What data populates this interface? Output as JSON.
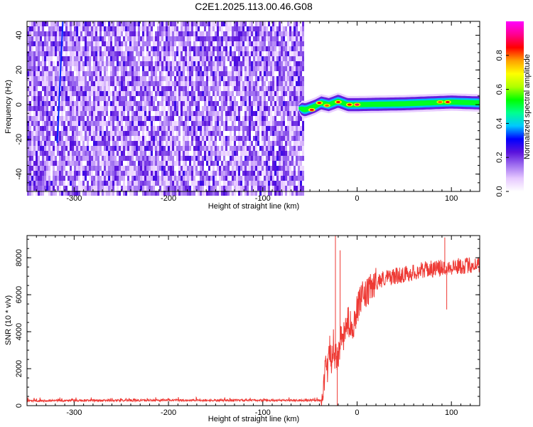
{
  "title": "C2E1.2025.113.00.46.G08",
  "colors": {
    "snr_line": "#ee3a35",
    "background": "#ffffff",
    "frame": "#000000"
  },
  "chart_data": [
    {
      "type": "heatmap",
      "xlabel": "Height of straight line (km)",
      "ylabel": "Frequency (Hz)",
      "xlim": [
        -350,
        130
      ],
      "ylim": [
        -50,
        48
      ],
      "x_ticks": [
        -300,
        -200,
        -100,
        0,
        100
      ],
      "x_tick_labels": [
        "-300",
        "-200",
        "-100",
        "0",
        "100"
      ],
      "y_ticks": [
        -40,
        -20,
        0,
        20,
        40
      ],
      "y_tick_labels": [
        "-40",
        "-20",
        "0",
        "20",
        "40"
      ],
      "noise_region": {
        "x_start": -350,
        "x_end": -58,
        "typical_amplitude": 0.15
      },
      "signal_track": {
        "x_start": -62,
        "x_end": 130,
        "center_frequency_hz": 0,
        "halfwidth_hz": 5,
        "centerline": [
          [
            -62,
            -2
          ],
          [
            -55,
            -3
          ],
          [
            -45,
            -1
          ],
          [
            -38,
            1
          ],
          [
            -30,
            0
          ],
          [
            -20,
            2
          ],
          [
            -10,
            0
          ],
          [
            0,
            0
          ],
          [
            50,
            0.5
          ],
          [
            100,
            1.5
          ],
          [
            130,
            1
          ]
        ],
        "peaks": [
          [
            -48,
            -3,
            0.85
          ],
          [
            -40,
            1,
            0.85
          ],
          [
            -32,
            -0.5,
            0.8
          ],
          [
            -20,
            1.5,
            0.85
          ],
          [
            -8,
            0,
            0.85
          ],
          [
            0,
            0,
            0.9
          ],
          [
            88,
            1.5,
            0.8
          ],
          [
            96,
            1.5,
            0.85
          ]
        ]
      },
      "streak": {
        "x_top": -312,
        "y_top": 48,
        "x_bottom": -318,
        "y_bottom": -22
      },
      "grid": false
    },
    {
      "type": "colorbar",
      "label": "Normalized spectral amplitude",
      "range": [
        0,
        1
      ],
      "ticks": [
        0.0,
        0.2,
        0.4,
        0.6,
        0.8
      ],
      "tick_labels": [
        "0.0",
        "0.2",
        "0.4",
        "0.6",
        "0.8"
      ],
      "colormap": [
        "#ffffff",
        "#e6c8ff",
        "#a070f0",
        "#5a12dc",
        "#0000ff",
        "#00c8ff",
        "#00ff90",
        "#00ff00",
        "#b0ff00",
        "#ffff00",
        "#ffa000",
        "#ff0000",
        "#ff0090",
        "#ff00ff"
      ]
    },
    {
      "type": "line",
      "xlabel": "Height of straight line (km)",
      "ylabel": "SNR (10 * v/v)",
      "xlim": [
        -350,
        130
      ],
      "ylim": [
        0,
        9200
      ],
      "x_ticks": [
        -300,
        -200,
        -100,
        0,
        100
      ],
      "x_tick_labels": [
        "-300",
        "-200",
        "-100",
        "0",
        "100"
      ],
      "y_ticks": [
        0,
        2000,
        4000,
        6000,
        8000
      ],
      "y_tick_labels": [
        "0",
        "2000",
        "4000",
        "6000",
        "8000"
      ],
      "series": [
        {
          "x": [
            -350,
            -300,
            -250,
            -200,
            -150,
            -100,
            -50,
            -37,
            -35,
            -33,
            -31,
            -29,
            -27,
            -25,
            -23,
            -20,
            -17,
            -14,
            -10,
            -5,
            0,
            5,
            10,
            15,
            20,
            30,
            40,
            50,
            60,
            70,
            80,
            90,
            95,
            100,
            110,
            120,
            130
          ],
          "y": [
            270,
            275,
            280,
            290,
            285,
            290,
            280,
            300,
            1300,
            2500,
            1800,
            3000,
            2300,
            3400,
            2500,
            2800,
            3600,
            3700,
            4600,
            4200,
            5200,
            5900,
            6000,
            6400,
            6700,
            6900,
            7000,
            7100,
            7200,
            7350,
            7400,
            7450,
            7500,
            7500,
            7550,
            7600,
            7650
          ],
          "noise": 450
        }
      ],
      "spikes": [
        [
          -23,
          9200
        ],
        [
          -21,
          0
        ],
        [
          -18,
          8400
        ],
        [
          93,
          9100
        ],
        [
          95,
          5200
        ]
      ],
      "grid": false
    }
  ]
}
